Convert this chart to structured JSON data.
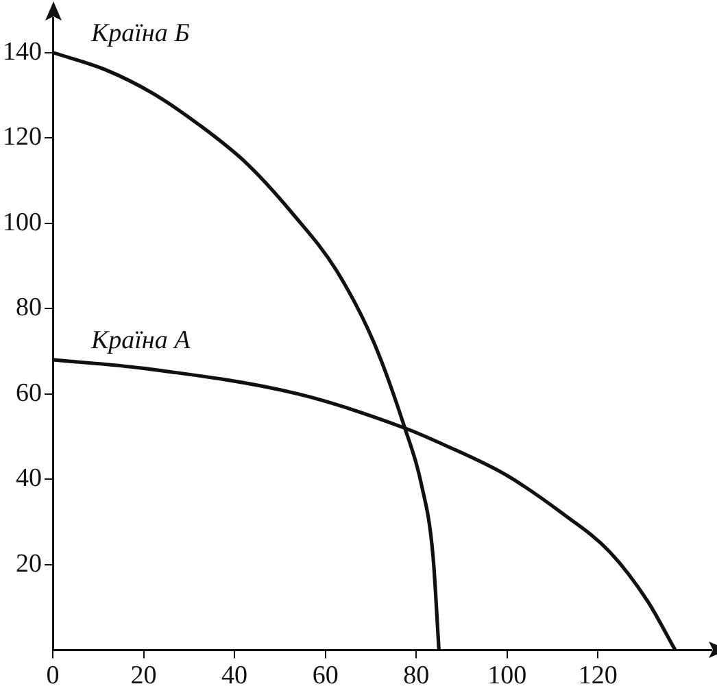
{
  "chart_data": {
    "type": "line",
    "xlim": [
      0,
      145
    ],
    "ylim": [
      0,
      148
    ],
    "xticks": [
      0,
      20,
      40,
      60,
      80,
      100,
      120
    ],
    "yticks": [
      20,
      40,
      60,
      80,
      100,
      120,
      140
    ],
    "grid": false,
    "legend": false,
    "marker": "none",
    "line_style": "solid",
    "series": [
      {
        "name": "Країна Б",
        "color": "#111111",
        "x": [
          0,
          11.5,
          21.9,
          32.3,
          42.7,
          53,
          62.4,
          70.7,
          77.5,
          81.1,
          83.7,
          85
        ],
        "values": [
          140,
          136,
          130.5,
          123,
          114,
          102,
          89,
          72,
          52,
          39,
          22,
          0
        ]
      },
      {
        "name": "Країна А",
        "color": "#111111",
        "x": [
          0,
          20,
          54,
          77.5,
          86.3,
          99.8,
          112.2,
          122.6,
          130.9,
          137
        ],
        "values": [
          68,
          66,
          60,
          52,
          48,
          41,
          32,
          23,
          11.5,
          0
        ]
      }
    ]
  }
}
